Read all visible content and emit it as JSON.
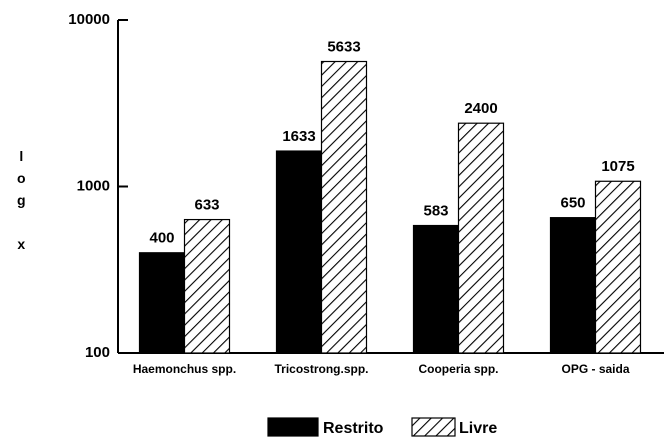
{
  "chart_data": {
    "type": "bar",
    "y_label": "log x",
    "categories": [
      "Haemonchus spp.",
      "Tricostrong.spp.",
      "Cooperia spp.",
      "OPG - saida"
    ],
    "series": [
      {
        "name": "Restrito",
        "color": "#000000",
        "values": [
          400,
          1633,
          583,
          650
        ]
      },
      {
        "name": "Livre",
        "color": "#000000",
        "pattern": "hatch",
        "values": [
          633,
          5633,
          2400,
          1075
        ]
      }
    ],
    "ylim": [
      100,
      10000
    ],
    "yticks": [
      100,
      1000,
      10000
    ],
    "log_scale": true,
    "legend": "bottom"
  }
}
